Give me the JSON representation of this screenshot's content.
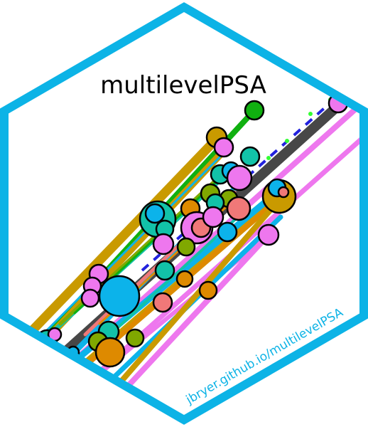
{
  "sticker": {
    "title": "multilevelPSA",
    "url": "jbryer.github.io/multilevelPSA",
    "border_color": "#0cb3e6",
    "background_color": "#ffffff"
  },
  "artwork": {
    "palette": {
      "gold": "#c99a00",
      "green": "#10b010",
      "dark_gray": "#474747",
      "violet": "#ee77ee",
      "teal": "#12c2a8",
      "sky": "#0cb3ea",
      "orange": "#de8a00",
      "salmon": "#f07878",
      "olive": "#80a800",
      "blue_dash": "#2222dd",
      "mint_dot": "#33ff33"
    }
  }
}
